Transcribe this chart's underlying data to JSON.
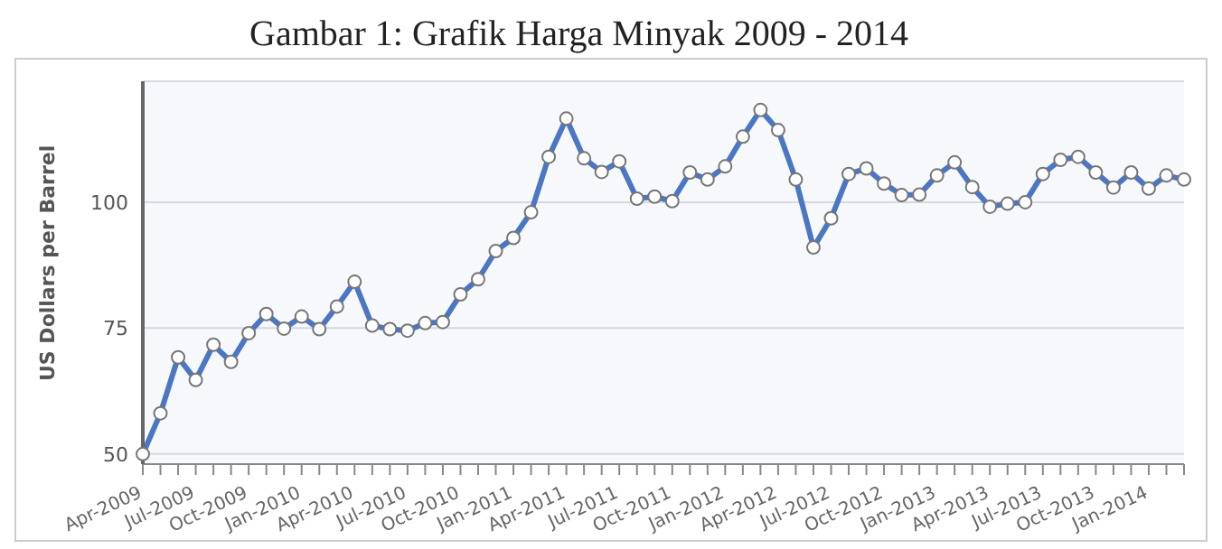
{
  "chart_data": {
    "type": "line",
    "title": "Gambar 1: Grafik Harga Minyak 2009 - 2014",
    "ylabel": "US Dollars per Barrel",
    "categories": [
      "Apr-2009",
      null,
      null,
      "Jul-2009",
      null,
      null,
      "Oct-2009",
      null,
      null,
      "Jan-2010",
      null,
      null,
      "Apr-2010",
      null,
      null,
      "Jul-2010",
      null,
      null,
      "Oct-2010",
      null,
      null,
      "Jan-2011",
      null,
      null,
      "Apr-2011",
      null,
      null,
      "Jul-2011",
      null,
      null,
      "Oct-2011",
      null,
      null,
      "Jan-2012",
      null,
      null,
      "Apr-2012",
      null,
      null,
      "Jul-2012",
      null,
      null,
      "Oct-2012",
      null,
      null,
      "Jan-2013",
      null,
      null,
      "Apr-2013",
      null,
      null,
      "Jul-2013",
      null,
      null,
      "Oct-2013",
      null,
      null,
      "Jan-2014",
      null,
      null
    ],
    "series": [
      {
        "color": "#4a76c4",
        "values": [
          50,
          58.1,
          69.2,
          64.7,
          71.7,
          68.3,
          74,
          77.8,
          74.9,
          77.3,
          74.8,
          79.3,
          84.2,
          75.5,
          74.8,
          74.5,
          76,
          76.2,
          81.7,
          84.7,
          90.3,
          92.9,
          98,
          109,
          116.6,
          108.7,
          106,
          108.1,
          100.7,
          101.1,
          100.2,
          105.9,
          104.5,
          107.1,
          113,
          118.3,
          114.3,
          104.5,
          91,
          96.8,
          105.6,
          106.7,
          103.7,
          101.4,
          101.5,
          105.3,
          107.9,
          103,
          99.1,
          99.7,
          100,
          105.6,
          108.4,
          109,
          105.9,
          102.9,
          105.9,
          102.7,
          105.3,
          104.5
        ]
      }
    ],
    "ylim": [
      48,
      124
    ],
    "yticks": [
      50,
      75,
      100
    ],
    "grid": "y",
    "marker": "circle",
    "line_style": "solid"
  }
}
